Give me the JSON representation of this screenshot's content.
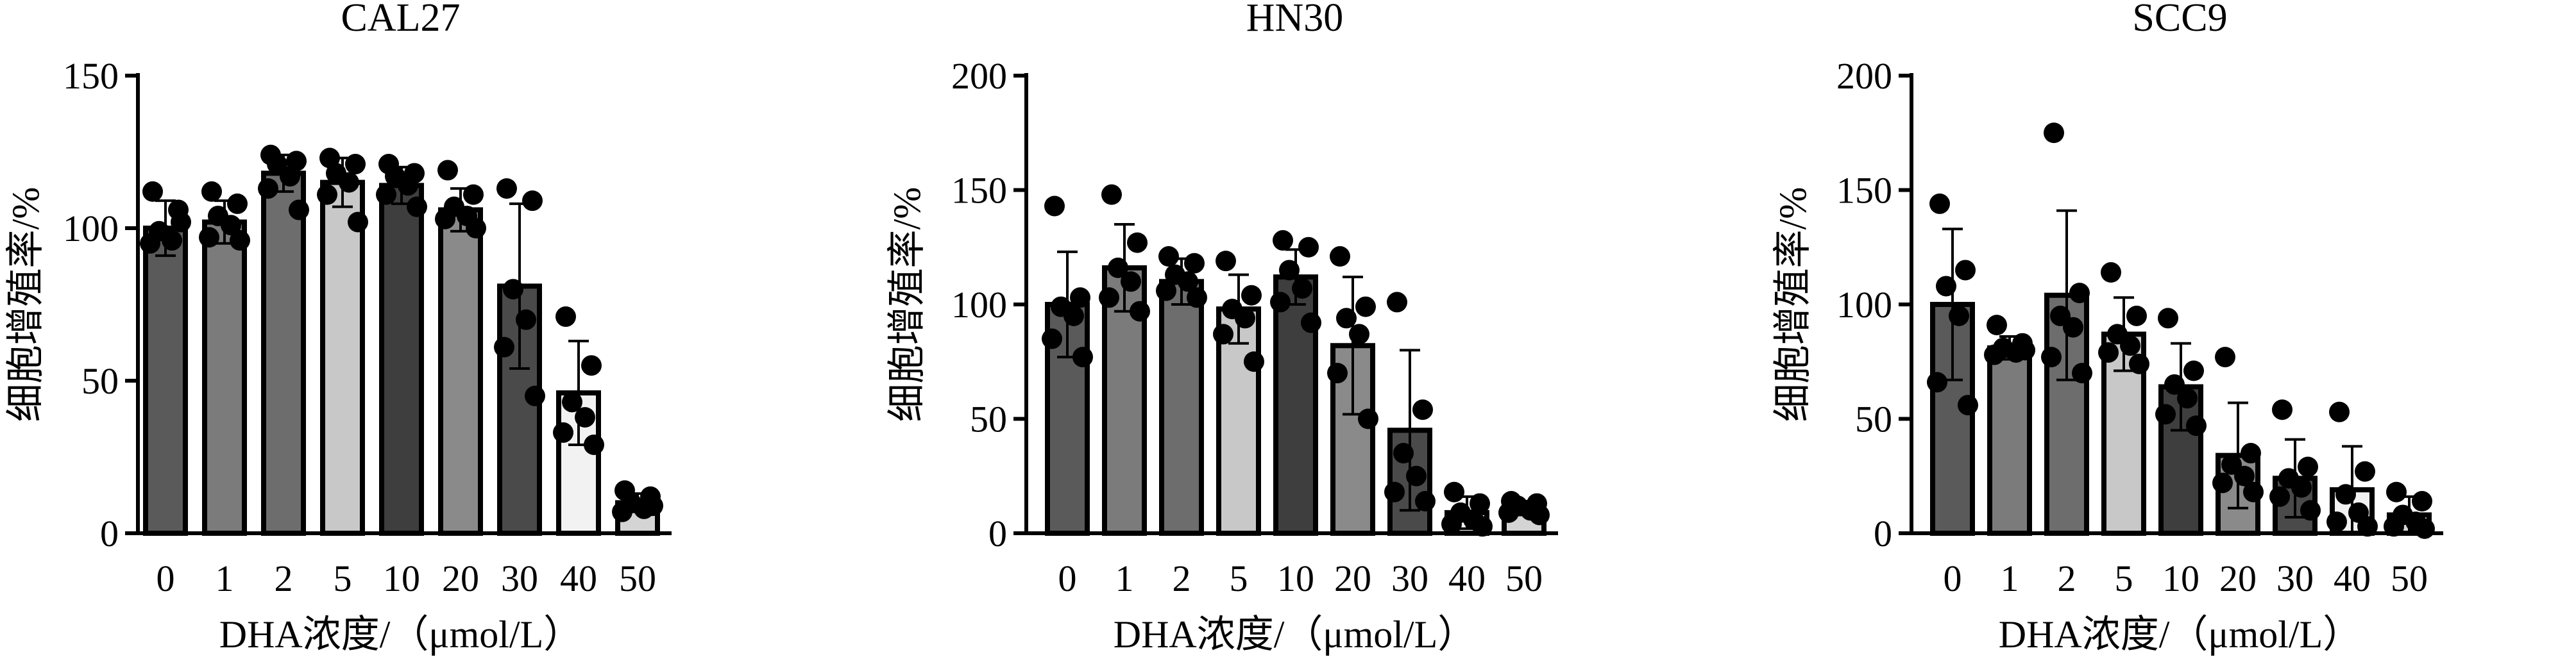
{
  "figure": {
    "xlabel": "DHA浓度/（μmol/L）",
    "ylabel": "细胞增殖率/%"
  },
  "chart_data": [
    {
      "type": "bar",
      "title": "CAL27",
      "xlabel": "DHA浓度/（μmol/L）",
      "ylabel": "细胞增殖率/%",
      "categories": [
        "0",
        "1",
        "2",
        "5",
        "10",
        "20",
        "30",
        "40",
        "50"
      ],
      "values": [
        100,
        102,
        118,
        115,
        114,
        106,
        81,
        46,
        10
      ],
      "error": [
        9,
        7,
        6,
        8,
        6,
        7,
        27,
        17,
        3
      ],
      "points": [
        [
          112,
          106,
          99,
          96,
          95,
          102
        ],
        [
          112,
          108,
          104,
          101,
          97,
          96
        ],
        [
          124,
          122,
          121,
          117,
          113,
          106
        ],
        [
          123,
          121,
          118,
          115,
          111,
          102
        ],
        [
          121,
          118,
          117,
          114,
          111,
          107
        ],
        [
          119,
          111,
          107,
          104,
          103,
          100
        ],
        [
          113,
          109,
          80,
          70,
          61,
          45
        ],
        [
          71,
          55,
          43,
          38,
          33,
          29
        ],
        [
          14,
          12,
          10,
          8,
          7,
          9
        ]
      ],
      "ylim": [
        0,
        150
      ],
      "yticks": [
        0,
        50,
        100,
        150
      ],
      "bar_colors": [
        "#5a5a5a",
        "#7b7b7b",
        "#6d6d6d",
        "#c8c8c8",
        "#3e3e3e",
        "#8a8a8a",
        "#4a4a4a",
        "#f2f2f2",
        "#d4d4d4"
      ]
    },
    {
      "type": "bar",
      "title": "HN30",
      "xlabel": "DHA浓度/（μmol/L）",
      "ylabel": "细胞增殖率/%",
      "categories": [
        "0",
        "1",
        "2",
        "5",
        "10",
        "20",
        "30",
        "40",
        "50"
      ],
      "values": [
        100,
        116,
        110,
        98,
        112,
        82,
        45,
        9,
        11
      ],
      "error": [
        23,
        19,
        10,
        15,
        12,
        30,
        35,
        7,
        3
      ],
      "points": [
        [
          143,
          103,
          99,
          95,
          85,
          77
        ],
        [
          148,
          127,
          116,
          110,
          103,
          97
        ],
        [
          121,
          118,
          113,
          110,
          106,
          103
        ],
        [
          119,
          104,
          98,
          94,
          87,
          75
        ],
        [
          128,
          125,
          115,
          107,
          101,
          92
        ],
        [
          121,
          99,
          94,
          87,
          70,
          50
        ],
        [
          101,
          54,
          35,
          25,
          18,
          14
        ],
        [
          18,
          13,
          9,
          6,
          4,
          3
        ],
        [
          14,
          13,
          12,
          10,
          9,
          8
        ]
      ],
      "ylim": [
        0,
        200
      ],
      "yticks": [
        0,
        50,
        100,
        150,
        200
      ],
      "bar_colors": [
        "#5a5a5a",
        "#7b7b7b",
        "#6d6d6d",
        "#c8c8c8",
        "#3e3e3e",
        "#8a8a8a",
        "#4a4a4a",
        "#f2f2f2",
        "#d4d4d4"
      ]
    },
    {
      "type": "bar",
      "title": "SCC9",
      "xlabel": "DHA浓度/（μmol/L）",
      "ylabel": "细胞增殖率/%",
      "categories": [
        "0",
        "1",
        "2",
        "5",
        "10",
        "20",
        "30",
        "40",
        "50"
      ],
      "values": [
        100,
        81,
        104,
        87,
        64,
        34,
        24,
        19,
        8
      ],
      "error": [
        33,
        5,
        37,
        16,
        19,
        23,
        17,
        19,
        8
      ],
      "points": [
        [
          144,
          115,
          108,
          95,
          66,
          56
        ],
        [
          91,
          83,
          81,
          79,
          78,
          80
        ],
        [
          175,
          105,
          95,
          90,
          77,
          70
        ],
        [
          114,
          95,
          87,
          82,
          79,
          74
        ],
        [
          94,
          71,
          65,
          59,
          52,
          47
        ],
        [
          77,
          35,
          30,
          25,
          22,
          18
        ],
        [
          54,
          29,
          24,
          20,
          16,
          10
        ],
        [
          53,
          27,
          17,
          9,
          5,
          3
        ],
        [
          18,
          14,
          8,
          5,
          3,
          2
        ]
      ],
      "ylim": [
        0,
        200
      ],
      "yticks": [
        0,
        50,
        100,
        150,
        200
      ],
      "bar_colors": [
        "#5a5a5a",
        "#7b7b7b",
        "#6d6d6d",
        "#c8c8c8",
        "#3e3e3e",
        "#8a8a8a",
        "#4a4a4a",
        "#f2f2f2",
        "#d4d4d4"
      ]
    }
  ]
}
